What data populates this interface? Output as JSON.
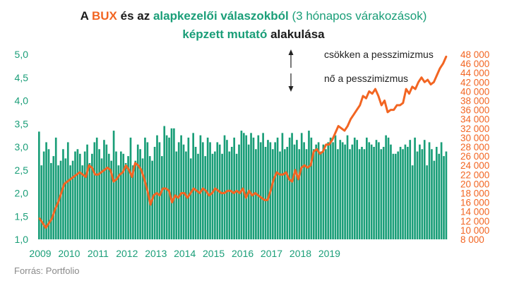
{
  "title": {
    "line1": [
      {
        "text": "A ",
        "color": "#1a1a1a",
        "bold": true
      },
      {
        "text": "BUX",
        "color": "#f26522",
        "bold": true
      },
      {
        "text": " és az ",
        "color": "#1a1a1a",
        "bold": true
      },
      {
        "text": "alapkezelői válaszokból",
        "color": "#1a9e78",
        "bold": true
      },
      {
        "text": " (3 hónapos várakozások)",
        "color": "#1a9e78",
        "bold": false
      }
    ],
    "line2": [
      {
        "text": "képzett mutató",
        "color": "#1a9e78",
        "bold": true
      },
      {
        "text": " alakulása",
        "color": "#1a1a1a",
        "bold": true
      }
    ]
  },
  "source": "Forrás: Portfolio",
  "annotations": {
    "up": "csökken a pesszimizmus",
    "down": "nő a pesszimizmus"
  },
  "colors": {
    "bars": "#1a9e78",
    "line": "#f26522",
    "left_axis": "#1a9e78",
    "right_axis": "#f26522",
    "x_axis": "#1a9e78"
  },
  "chart_data": {
    "type": "bar+line",
    "x_ticks": [
      "2009",
      "2010",
      "2011",
      "2012",
      "2013",
      "2014",
      "2015",
      "2016",
      "2017",
      "2018",
      "2019"
    ],
    "left_axis": {
      "min": 1.0,
      "max": 5.0,
      "ticks": [
        "1,0",
        "1,5",
        "2,0",
        "2,5",
        "3,0",
        "3,5",
        "4,0",
        "4,5",
        "5,0"
      ]
    },
    "right_axis": {
      "min": 8000,
      "max": 48000,
      "ticks": [
        "8 000",
        "10 000",
        "12 000",
        "14 000",
        "16 000",
        "18 000",
        "20 000",
        "22 000",
        "24 000",
        "26 000",
        "28 000",
        "30 000",
        "32 000",
        "34 000",
        "36 000",
        "38 000",
        "40 000",
        "42 000",
        "44 000",
        "46 000",
        "48 000"
      ]
    },
    "series": [
      {
        "name": "alapkezelői mutató",
        "axis": "left",
        "kind": "bar",
        "values": [
          3.33,
          2.6,
          2.9,
          3.1,
          2.95,
          2.65,
          2.8,
          3.2,
          2.6,
          2.7,
          2.95,
          2.75,
          3.1,
          2.6,
          2.7,
          2.9,
          2.95,
          2.85,
          2.6,
          2.9,
          3.05,
          2.65,
          2.85,
          3.1,
          3.2,
          2.95,
          2.75,
          3.15,
          3.05,
          2.85,
          2.7,
          3.35,
          2.9,
          2.6,
          2.9,
          2.85,
          2.65,
          2.8,
          3.2,
          2.6,
          2.7,
          3.05,
          2.95,
          2.75,
          3.2,
          3.1,
          2.8,
          2.7,
          3.0,
          3.25,
          3.1,
          2.8,
          3.45,
          3.25,
          3.2,
          3.4,
          3.4,
          2.9,
          3.1,
          3.25,
          3.05,
          2.9,
          3.2,
          2.75,
          3.3,
          3.0,
          2.85,
          3.25,
          3.1,
          2.8,
          3.2,
          3.1,
          2.85,
          2.9,
          3.1,
          3.05,
          2.85,
          3.25,
          3.15,
          2.9,
          3.0,
          3.2,
          2.85,
          3.05,
          3.35,
          3.3,
          3.25,
          3.05,
          3.3,
          3.2,
          2.95,
          3.25,
          3.1,
          3.3,
          3.0,
          3.15,
          3.1,
          2.95,
          3.1,
          3.2,
          2.9,
          3.3,
          2.95,
          3.0,
          3.2,
          3.3,
          3.05,
          3.15,
          2.95,
          3.3,
          3.1,
          2.95,
          3.35,
          3.2,
          2.95,
          3.05,
          3.1,
          2.9,
          3.05,
          2.95,
          3.1,
          3.2,
          3.1,
          3.25,
          2.95,
          3.15,
          3.1,
          3.05,
          3.25,
          2.95,
          3.05,
          3.2,
          3.15,
          2.95,
          3.0,
          2.95,
          3.2,
          3.1,
          3.05,
          3.0,
          3.15,
          3.1,
          2.95,
          3.0,
          3.25,
          3.2,
          3.05,
          2.85,
          2.85,
          2.9,
          3.0,
          2.95,
          3.05,
          3.0,
          3.15,
          2.6,
          3.2,
          2.9,
          3.05,
          2.95,
          3.15,
          2.6,
          3.1,
          2.95,
          2.7,
          3.0,
          2.85,
          3.1,
          2.8,
          2.9
        ]
      },
      {
        "name": "BUX",
        "axis": "right",
        "kind": "line",
        "values": [
          12500,
          11500,
          10500,
          11500,
          12500,
          14500,
          16000,
          18000,
          20000,
          20500,
          21000,
          21500,
          22000,
          22500,
          22000,
          21500,
          24000,
          23500,
          22000,
          22000,
          22500,
          23000,
          23500,
          23000,
          20500,
          21000,
          22000,
          22500,
          24000,
          23000,
          21500,
          24500,
          24000,
          23000,
          21000,
          18500,
          15500,
          17500,
          18000,
          17500,
          19000,
          19000,
          18500,
          16000,
          17500,
          17000,
          18000,
          18000,
          17000,
          18000,
          19000,
          18500,
          18000,
          19000,
          18500,
          17500,
          18000,
          19000,
          18500,
          18000,
          18000,
          18500,
          18500,
          18000,
          18500,
          18000,
          19000,
          17000,
          18500,
          17500,
          18000,
          17500,
          17000,
          16500,
          16500,
          18500,
          21000,
          22500,
          22000,
          22000,
          22500,
          21000,
          20500,
          23000,
          21000,
          23500,
          24000,
          23500,
          24000,
          27000,
          27500,
          26500,
          27000,
          28500,
          28500,
          29500,
          31000,
          32500,
          32000,
          31500,
          32500,
          34000,
          35000,
          36000,
          37000,
          39000,
          38500,
          40000,
          39500,
          40500,
          39000,
          37000,
          38000,
          35500,
          36000,
          36000,
          37000,
          37000,
          37500,
          40500,
          39500,
          41000,
          40500,
          42000,
          43000,
          42000,
          42500,
          41500,
          42000,
          43500,
          45000,
          46000,
          47500
        ]
      }
    ]
  }
}
